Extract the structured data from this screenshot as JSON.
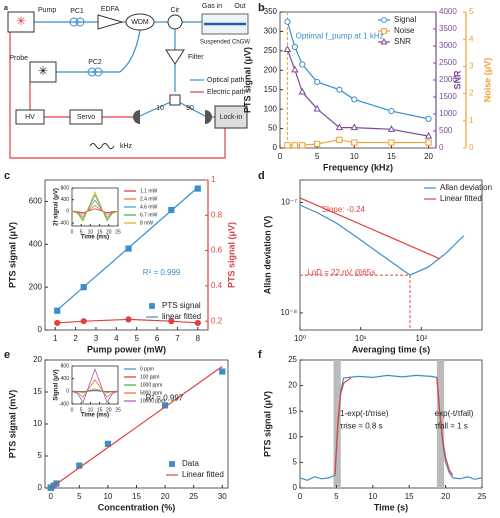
{
  "diagram": {
    "panel": "a",
    "labels": {
      "pump": "Pump",
      "pc1": "PC1",
      "edfa": "EDFA",
      "wdm": "WDM",
      "cir": "Cir",
      "gas_in": "Gas in",
      "out": "Out",
      "chgw": "Suspended ChGW",
      "filter": "Filter",
      "probe": "Probe",
      "pc2": "PC2",
      "optical": "Optical path",
      "electric": "Electric path",
      "hv": "HV",
      "servo": "Servo",
      "ten": 10,
      "ninety": 90,
      "lockin": "Lock-in",
      "khz": "kHz"
    }
  },
  "chart_data": [
    {
      "type": "scatter",
      "panel": "b",
      "xlabel": "Frequency (kHz)",
      "ylabel": "PTS signal (μV)",
      "y2label": "SNR",
      "y3label": "Noise (μV)",
      "y2color": "#7a4a9a",
      "y3color": "#f0a030",
      "xlim": [
        0,
        21
      ],
      "xticks": [
        0,
        5,
        10,
        15,
        20
      ],
      "ylim": [
        0,
        350
      ],
      "yticks": [
        0,
        50,
        100,
        150,
        200,
        250,
        300,
        350
      ],
      "y2lim": [
        0,
        4000
      ],
      "y2ticks": [
        0,
        500,
        1000,
        1500,
        2000,
        2500,
        3000,
        3500,
        4000
      ],
      "y3lim": [
        0,
        5
      ],
      "y3ticks": [
        0,
        1,
        2,
        3,
        4,
        5
      ],
      "legend": "upper right",
      "highlight_x": 1,
      "annotations": [
        "Optimal f_pump at 1 kHz"
      ],
      "annotation_color": "#3a8fc9",
      "series": [
        {
          "name": "Signal",
          "color": "#3a8fc9",
          "marker": "circle",
          "open": true,
          "line": true,
          "x": [
            1,
            2,
            3,
            5,
            8,
            10,
            15,
            20
          ],
          "values": [
            325,
            260,
            215,
            170,
            150,
            125,
            95,
            75
          ]
        },
        {
          "name": "Noise",
          "color": "#f0a030",
          "marker": "square",
          "open": true,
          "line": true,
          "axis": "y3",
          "x": [
            1,
            2,
            3,
            5,
            8,
            10,
            15,
            20
          ],
          "values": [
            0.1,
            0.1,
            0.1,
            0.15,
            0.3,
            0.2,
            0.2,
            0.2
          ]
        },
        {
          "name": "SNR",
          "color": "#7a4a9a",
          "marker": "triangle",
          "open": true,
          "line": true,
          "axis": "y2",
          "x": [
            1,
            2,
            3,
            5,
            8,
            10,
            15,
            20
          ],
          "values": [
            2900,
            2300,
            1650,
            1150,
            600,
            600,
            550,
            350
          ]
        }
      ]
    },
    {
      "type": "scatter",
      "panel": "c",
      "xlabel": "Pump power (mW)",
      "ylabel": "PTS signal (μV)",
      "y2label": "PTS signal (μV)",
      "y2color": "#e04040",
      "xlim": [
        0.5,
        8.5
      ],
      "xticks": [
        1,
        2,
        3,
        4,
        5,
        6,
        7,
        8
      ],
      "ylim": [
        0,
        700
      ],
      "yticks": [
        0,
        200,
        400,
        600
      ],
      "y2lim": [
        0.15,
        1.0
      ],
      "y2ticks": [
        0.2,
        0.4,
        0.6,
        0.8,
        1.0
      ],
      "legend": "lower right",
      "annotations": [
        "R² = 0.999"
      ],
      "annotation_color": "#3a8fc9",
      "series": [
        {
          "name": "PTS signal",
          "color": "#3a8fc9",
          "marker": "square",
          "line": false,
          "x": [
            1.1,
            2.4,
            4.6,
            6.7,
            8
          ],
          "values": [
            90,
            200,
            380,
            560,
            660
          ]
        },
        {
          "name": "linear fitted",
          "color": "#3a8fc9",
          "line": true,
          "x": [
            1,
            8
          ],
          "values": [
            85,
            665
          ]
        },
        {
          "color": "#e04040",
          "marker": "circle",
          "line": true,
          "axis": "y2",
          "x": [
            1.1,
            2.4,
            4.6,
            6.7,
            8
          ],
          "values": [
            0.19,
            0.2,
            0.21,
            0.2,
            0.19
          ]
        }
      ],
      "inset": {
        "xlabel": "Time (ms)",
        "ylabel": "2f signal (μV)",
        "xlim": [
          0,
          25
        ],
        "xticks": [
          0,
          5,
          10,
          15,
          20,
          25
        ],
        "ylim": [
          -500,
          800
        ],
        "yticks": [
          -400,
          0,
          400,
          800
        ],
        "legend": "right",
        "series": [
          {
            "name": "1.1 mW",
            "color": "#e03030",
            "line": true,
            "x": [
              0,
              3,
              6,
              9,
              12.5,
              16,
              19,
              22,
              25
            ],
            "values": [
              0,
              -9,
              -45,
              18,
              90,
              18,
              -45,
              -9,
              0
            ]
          },
          {
            "name": "2.4 mW",
            "color": "#f07020",
            "line": true,
            "x": [
              0,
              3,
              6,
              9,
              12.5,
              16,
              19,
              22,
              25
            ],
            "values": [
              0,
              -20,
              -100,
              40,
              200,
              40,
              -100,
              -20,
              0
            ]
          },
          {
            "name": "4.6 mW",
            "color": "#3aa0d0",
            "line": true,
            "x": [
              0,
              3,
              6,
              9,
              12.5,
              16,
              19,
              22,
              25
            ],
            "values": [
              0,
              -38,
              -190,
              76,
              380,
              76,
              -190,
              -38,
              0
            ]
          },
          {
            "name": "6.7 mW",
            "color": "#40b040",
            "line": true,
            "x": [
              0,
              3,
              6,
              9,
              12.5,
              16,
              19,
              22,
              25
            ],
            "values": [
              0,
              -56,
              -280,
              112,
              560,
              112,
              -280,
              -56,
              0
            ]
          },
          {
            "name": "8 mW",
            "color": "#d0b020",
            "line": true,
            "x": [
              0,
              3,
              6,
              9,
              12.5,
              16,
              19,
              22,
              25
            ],
            "values": [
              0,
              -66,
              -330,
              132,
              660,
              132,
              -330,
              -66,
              0
            ]
          }
        ]
      }
    },
    {
      "type": "line",
      "panel": "d",
      "xlabel": "Averaging time (s)",
      "ylabel": "Allan deviation (V)",
      "xlog": true,
      "ylog": true,
      "xlim": [
        1,
        1000
      ],
      "xticks": [
        {
          "value": 1,
          "label": "10⁰"
        },
        {
          "value": 10,
          "label": "10¹"
        },
        {
          "value": 100,
          "label": "10²"
        }
      ],
      "ylim": [
        7e-09,
        1.6e-07
      ],
      "yticks": [
        {
          "value": 1e-08,
          "label": "10⁻⁸"
        },
        {
          "value": 1e-07,
          "label": "10⁻⁷"
        }
      ],
      "legend": "upper right",
      "lod": {
        "x": 65,
        "y": 2.2e-08
      },
      "annotations": [
        "Slope: -0.24",
        "LoD = 22 nV @65s"
      ],
      "annotation_color": "#e04040",
      "series": [
        {
          "name": "Allan deviation",
          "color": "#3a8fc9",
          "line": true,
          "x": [
            1,
            2,
            4,
            8,
            16,
            32,
            65,
            130,
            260,
            500
          ],
          "values": [
            9.5e-08,
            8e-08,
            6.5e-08,
            5e-08,
            3.8e-08,
            2.9e-08,
            2.2e-08,
            2.6e-08,
            3.5e-08,
            5e-08
          ]
        },
        {
          "name": "Linear fitted",
          "color": "#e04040",
          "line": true,
          "x": [
            1,
            200
          ],
          "values": [
            1.1e-07,
            3.1e-08
          ]
        }
      ]
    },
    {
      "type": "scatter",
      "panel": "e",
      "xlabel": "Concentration (%)",
      "ylabel": "PTS signal (mV)",
      "xlim": [
        -1,
        31
      ],
      "xticks": [
        0,
        5,
        10,
        15,
        20,
        25,
        30
      ],
      "ylim": [
        0,
        20
      ],
      "yticks": [
        0,
        5,
        10,
        15,
        20
      ],
      "legend": "lower right",
      "annotations": [
        "R² = 0.997"
      ],
      "annotation_color": "#222",
      "series": [
        {
          "name": "Data",
          "color": "#3a8fc9",
          "marker": "square",
          "line": false,
          "x": [
            0,
            0.01,
            0.1,
            0.5,
            1,
            5,
            10,
            20,
            30
          ],
          "values": [
            0.02,
            0.03,
            0.08,
            0.36,
            0.7,
            3.5,
            6.9,
            12.9,
            18.2
          ]
        },
        {
          "name": "Linear fitted",
          "color": "#e04040",
          "line": true,
          "x": [
            0,
            30
          ],
          "values": [
            0,
            19
          ]
        }
      ],
      "inset": {
        "xlabel": "Time (ms)",
        "ylabel": "Signal (μV)",
        "xlim": [
          0,
          25
        ],
        "xticks": [
          0,
          5,
          10,
          15,
          20,
          25
        ],
        "ylim": [
          -400,
          800
        ],
        "yticks": [
          -400,
          0,
          400,
          800
        ],
        "legend": "right",
        "series": [
          {
            "name": "0 ppm",
            "color": "#3a8fc9",
            "line": true,
            "x": [
              0,
              3,
              6,
              9,
              12.5,
              16,
              19,
              22,
              25
            ],
            "values": [
              0,
              -2,
              -10,
              4,
              20,
              4,
              -10,
              -2,
              0
            ]
          },
          {
            "name": "100 ppm",
            "color": "#e03030",
            "line": true,
            "x": [
              0,
              3,
              6,
              9,
              12.5,
              16,
              19,
              22,
              25
            ],
            "values": [
              0,
              -3,
              -15,
              6,
              30,
              6,
              -15,
              -3,
              0
            ]
          },
          {
            "name": "1000 ppm",
            "color": "#40b040",
            "line": true,
            "x": [
              0,
              3,
              6,
              9,
              12.5,
              16,
              19,
              22,
              25
            ],
            "values": [
              0,
              -8,
              -40,
              16,
              80,
              16,
              -40,
              -8,
              0
            ]
          },
          {
            "name": "5000 ppm",
            "color": "#f07020",
            "line": true,
            "x": [
              0,
              3,
              6,
              9,
              12.5,
              16,
              19,
              22,
              25
            ],
            "values": [
              0,
              -36,
              -180,
              72,
              360,
              72,
              -180,
              -36,
              0
            ]
          },
          {
            "name": "10000 ppm",
            "color": "#b050c0",
            "line": true,
            "x": [
              0,
              3,
              6,
              9,
              12.5,
              16,
              19,
              22,
              25
            ],
            "values": [
              0,
              -70,
              -350,
              140,
              700,
              140,
              -350,
              -70,
              0
            ]
          }
        ]
      }
    },
    {
      "type": "line",
      "panel": "f",
      "xlabel": "Time (s)",
      "ylabel": "PTS signal (μV)",
      "xlim": [
        0,
        25
      ],
      "xticks": [
        0,
        5,
        10,
        15,
        20,
        25
      ],
      "ylim": [
        0,
        25
      ],
      "yticks": [
        0,
        5,
        10,
        15,
        20,
        25
      ],
      "shaded": [
        [
          4.6,
          5.6
        ],
        [
          18.8,
          19.8
        ]
      ],
      "annotations": [
        "1-exp(-t/τrise)",
        "τrise = 0.8 s",
        "exp(-t/τfall)",
        "τfall = 1 s"
      ],
      "annotation_color": "#222",
      "series": [
        {
          "color": "#3a8fc9",
          "line": true,
          "x": [
            0,
            1,
            2,
            3,
            4,
            4.8,
            5.2,
            5.6,
            6,
            8,
            10,
            12,
            14,
            16,
            18,
            18.8,
            19.2,
            19.6,
            20,
            20.5,
            21,
            22,
            23,
            24,
            25
          ],
          "values": [
            2,
            1.5,
            2.2,
            1.8,
            2,
            2.5,
            12,
            19,
            21.5,
            21.8,
            21.6,
            22,
            21.7,
            22,
            21.8,
            21.6,
            15,
            9,
            5,
            3,
            2,
            1.8,
            2.2,
            1.7,
            2
          ]
        },
        {
          "color": "#e04040",
          "line": true,
          "x": [
            4.8,
            5.2,
            5.6,
            6,
            7
          ],
          "values": [
            2.5,
            13,
            18.5,
            20.5,
            21.5
          ]
        },
        {
          "color": "#e04040",
          "line": true,
          "x": [
            18.8,
            19.2,
            19.6,
            20,
            20.5,
            21
          ],
          "values": [
            21.6,
            14.5,
            9.5,
            6,
            3.5,
            2.5
          ]
        }
      ]
    }
  ]
}
